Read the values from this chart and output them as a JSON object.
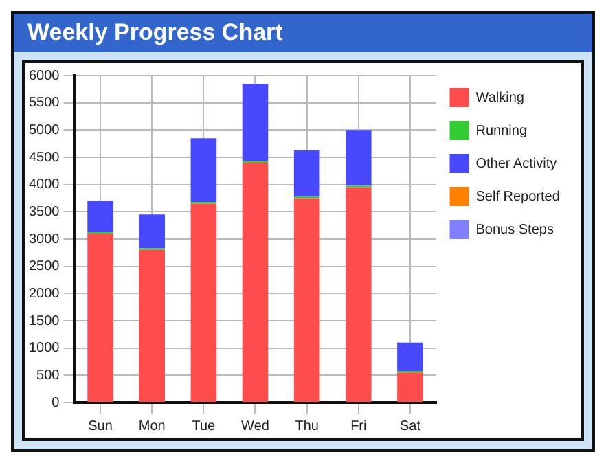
{
  "chart_data": {
    "type": "bar",
    "title": "Weekly Progress Chart",
    "stacked": true,
    "categories": [
      "Sun",
      "Mon",
      "Tue",
      "Wed",
      "Thu",
      "Fri",
      "Sat"
    ],
    "series": [
      {
        "name": "Walking",
        "color": "#ff4c4c",
        "values": [
          3100,
          2800,
          3650,
          4400,
          3750,
          3950,
          550
        ]
      },
      {
        "name": "Running",
        "color": "#33cc33",
        "values": [
          30,
          30,
          30,
          30,
          30,
          30,
          30
        ]
      },
      {
        "name": "Other Activity",
        "color": "#4848ff",
        "values": [
          570,
          620,
          1170,
          1420,
          850,
          1020,
          520
        ]
      },
      {
        "name": "Self Reported",
        "color": "#ff8000",
        "values": [
          0,
          0,
          0,
          0,
          0,
          0,
          0
        ]
      },
      {
        "name": "Bonus Steps",
        "color": "#8080ff",
        "values": [
          0,
          0,
          0,
          0,
          0,
          0,
          0
        ]
      }
    ],
    "ylim": [
      0,
      6000
    ],
    "yticks": [
      0,
      500,
      1000,
      1500,
      2000,
      2500,
      3000,
      3500,
      4000,
      4500,
      5000,
      5500,
      6000
    ],
    "grid": true,
    "legend": "right"
  }
}
